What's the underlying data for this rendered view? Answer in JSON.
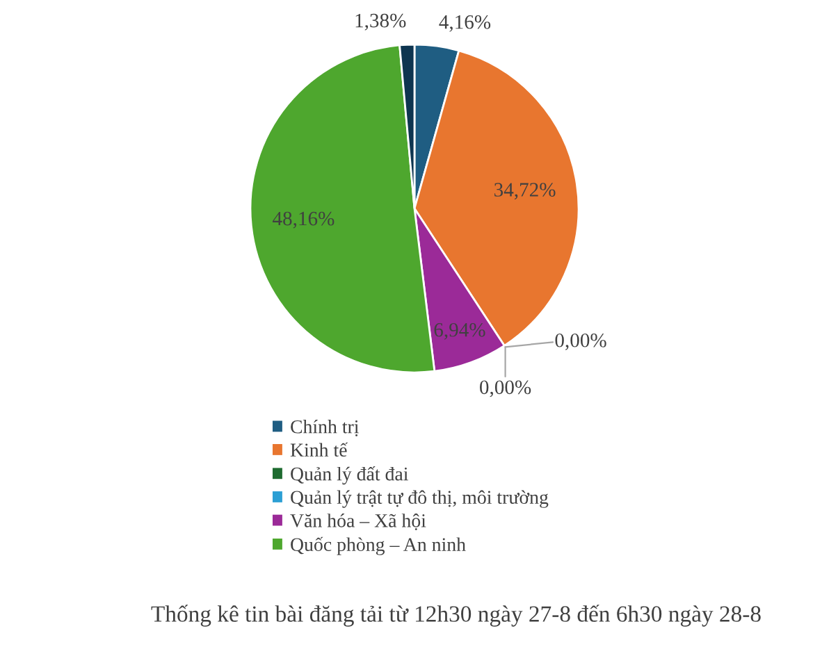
{
  "chart_data": {
    "type": "pie",
    "title": "Thống kê tin bài đăng tải từ 12h30 ngày 27-8 đến 6h30 ngày 28-8",
    "categories": [
      "Chính trị",
      "Kinh tế",
      "Quản lý đất đai",
      "Quản lý trật tự đô thị, môi trường",
      "Văn hóa – Xã hội",
      "Quốc phòng – An ninh",
      null
    ],
    "values": [
      4.16,
      34.72,
      0,
      0,
      6.94,
      48.16,
      1.38
    ],
    "colors": [
      "#1f5d82",
      "#e8762f",
      "#1e6b30",
      "#2c9fd4",
      "#9b2a98",
      "#4ea72e",
      "#0e3550"
    ],
    "value_labels": [
      "4,16%",
      "34,72%",
      "0,00%",
      "0,00%",
      "6,94%",
      "48,16%",
      "1,38%"
    ],
    "legend": "bottom"
  }
}
